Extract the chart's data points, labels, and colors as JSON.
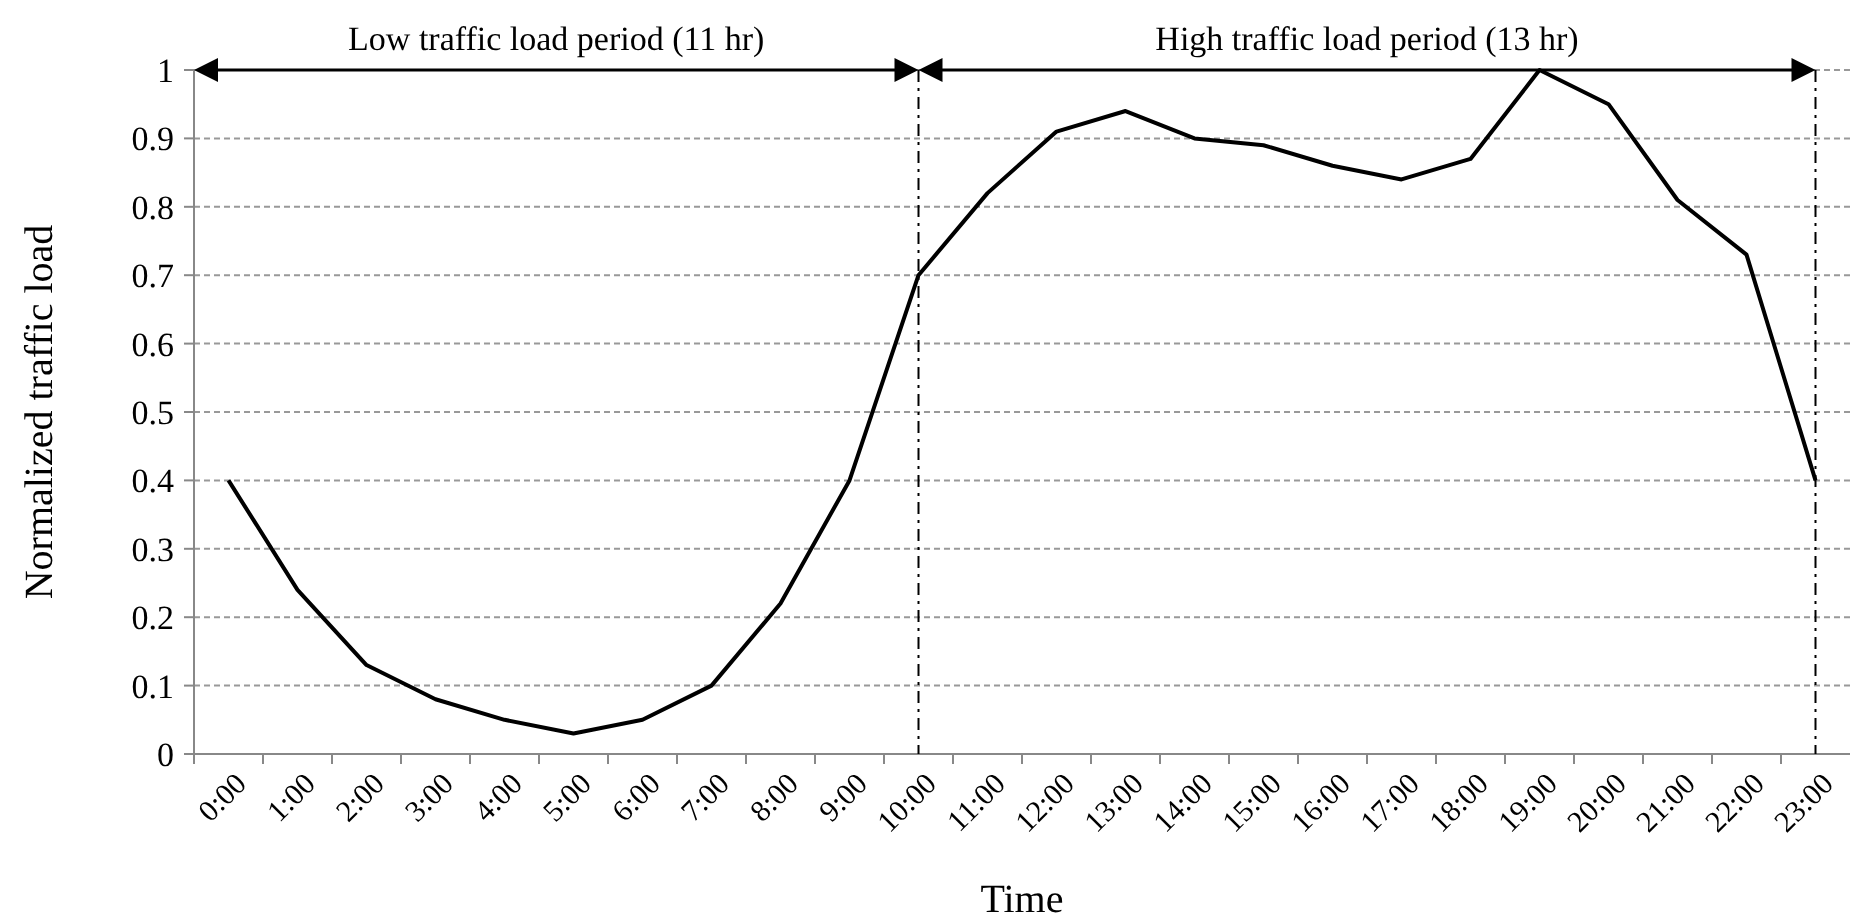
{
  "chart_data": {
    "type": "line",
    "xlabel": "Time",
    "ylabel": "Normalized traffic load",
    "categories": [
      "0:00",
      "1:00",
      "2:00",
      "3:00",
      "4:00",
      "5:00",
      "6:00",
      "7:00",
      "8:00",
      "9:00",
      "10:00",
      "11:00",
      "12:00",
      "13:00",
      "14:00",
      "15:00",
      "16:00",
      "17:00",
      "18:00",
      "19:00",
      "20:00",
      "21:00",
      "22:00",
      "23:00"
    ],
    "series": [
      {
        "color": "#000000",
        "values": [
          0.4,
          0.24,
          0.13,
          0.08,
          0.05,
          0.03,
          0.05,
          0.1,
          0.22,
          0.4,
          0.7,
          0.82,
          0.91,
          0.94,
          0.9,
          0.89,
          0.86,
          0.84,
          0.87,
          1.0,
          0.95,
          0.81,
          0.73,
          0.4
        ]
      }
    ],
    "ylim": [
      0,
      1
    ],
    "yticks": [
      0,
      0.1,
      0.2,
      0.3,
      0.4,
      0.5,
      0.6,
      0.7,
      0.8,
      0.9,
      1
    ],
    "grid": "y",
    "marker": "none",
    "line_style": "solid",
    "ref_lines": [
      {
        "axis": "x",
        "value": "10:00",
        "color": "#000000",
        "line_style": "dashed"
      },
      {
        "axis": "x",
        "value": "23:00",
        "color": "#000000",
        "line_style": "dashed"
      }
    ],
    "annotations": [
      "Low traffic load period (11 hr)",
      "High traffic load period (13 hr)"
    ]
  }
}
